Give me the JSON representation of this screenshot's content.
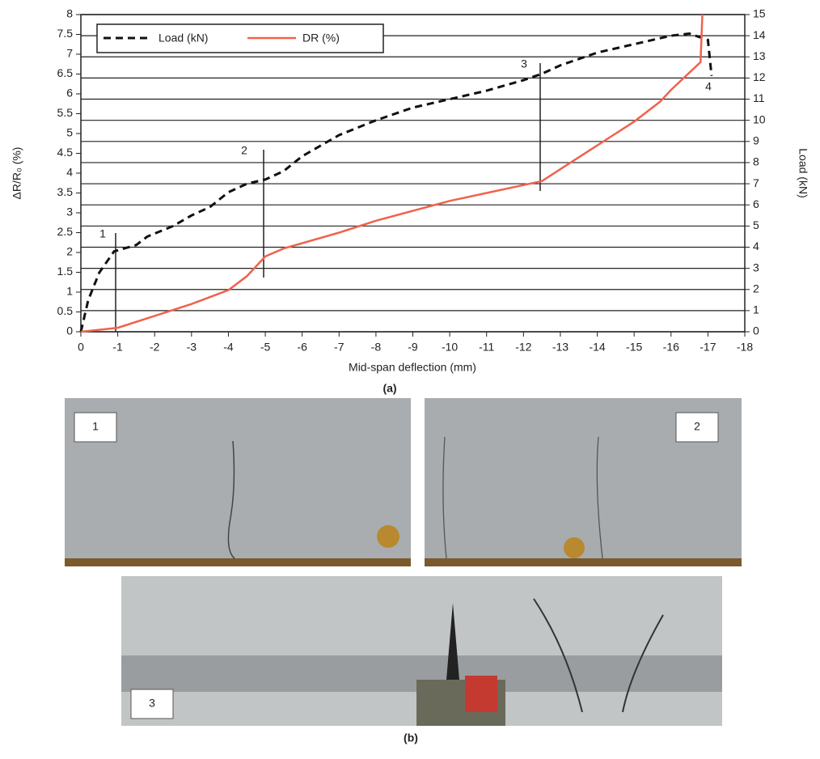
{
  "chart_data": {
    "type": "line",
    "xlabel": "Mid-span deflection (mm)",
    "ylabel": "ΔR/R₀ (%)",
    "y2label": "Load (kN)",
    "xlim": [
      0,
      -18
    ],
    "xticks": [
      0,
      -1,
      -2,
      -3,
      -4,
      -5,
      -6,
      -7,
      -8,
      -9,
      -10,
      -11,
      -12,
      -13,
      -14,
      -15,
      -16,
      -17,
      -18
    ],
    "ylim": [
      0,
      8
    ],
    "yticks": [
      0,
      0.5,
      1,
      1.5,
      2,
      2.5,
      3,
      3.5,
      4,
      4.5,
      5,
      5.5,
      6,
      6.5,
      7,
      7.5,
      8
    ],
    "y2lim": [
      0,
      15
    ],
    "y2ticks": [
      0,
      1,
      2,
      3,
      4,
      5,
      6,
      7,
      8,
      9,
      10,
      11,
      12,
      13,
      14,
      15
    ],
    "grid": true,
    "legend": "upper left",
    "series": [
      {
        "name": "Load (kN)",
        "color": "#111111",
        "axis": "y2",
        "dash": true,
        "x": [
          0,
          -0.2,
          -0.5,
          -0.9,
          -1.5,
          -1.8,
          -2.5,
          -3,
          -3.5,
          -4,
          -4.5,
          -5,
          -5.5,
          -6,
          -7,
          -8,
          -9,
          -10,
          -11,
          -12,
          -12.5,
          -13,
          -14,
          -15,
          -16,
          -16.5,
          -17,
          -17.1
        ],
        "values": [
          0,
          1.5,
          2.8,
          3.8,
          4.1,
          4.5,
          5,
          5.5,
          5.9,
          6.6,
          7,
          7.2,
          7.6,
          8.3,
          9.3,
          10,
          10.6,
          11,
          11.4,
          11.9,
          12.2,
          12.6,
          13.2,
          13.6,
          14,
          14.1,
          13.8,
          12.1
        ]
      },
      {
        "name": "DR (%)",
        "color": "#f0624d",
        "dash": false,
        "x": [
          0,
          -1,
          -2,
          -3,
          -4,
          -4.5,
          -5,
          -5.5,
          -7,
          -8,
          -9,
          -10,
          -11,
          -12,
          -12.5,
          -13,
          -14,
          -15,
          -15.7,
          -16,
          -16.8,
          -16.85
        ],
        "values": [
          0,
          0.1,
          0.4,
          0.7,
          1.05,
          1.4,
          1.9,
          2.1,
          2.5,
          2.8,
          3.05,
          3.3,
          3.5,
          3.7,
          3.8,
          4.1,
          4.7,
          5.3,
          5.8,
          6.1,
          6.8,
          8
        ]
      }
    ],
    "annotations": [
      "1",
      "2",
      "3",
      "4"
    ]
  },
  "captions": {
    "a": "(a)",
    "b": "(b)"
  },
  "photos": [
    {
      "label": "1"
    },
    {
      "label": "2"
    },
    {
      "label": "3"
    }
  ]
}
